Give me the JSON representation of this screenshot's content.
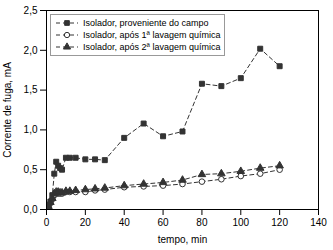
{
  "chart_data": {
    "type": "line",
    "xlabel": "tempo, min",
    "ylabel": "Corrente de fuga, mA",
    "xlim": [
      0,
      140
    ],
    "ylim": [
      0.0,
      2.5
    ],
    "xticks": [
      0,
      20,
      40,
      60,
      80,
      100,
      120,
      140
    ],
    "yticks": [
      {
        "value": 0.0,
        "label": "0,0"
      },
      {
        "value": 0.5,
        "label": "0,5"
      },
      {
        "value": 1.0,
        "label": "1,0"
      },
      {
        "value": 1.5,
        "label": "1,5"
      },
      {
        "value": 2.0,
        "label": "2,0"
      },
      {
        "value": 2.5,
        "label": "2,5"
      }
    ],
    "grid": false,
    "legend": "upper left",
    "series": [
      {
        "name": "Isolador, proveniente do campo",
        "color": "#333333",
        "marker": "square",
        "line_style": "dashed",
        "x": [
          1,
          2,
          3,
          4,
          5,
          6,
          7,
          8,
          10,
          12,
          15,
          20,
          25,
          30,
          40,
          50,
          60,
          70,
          80,
          90,
          100,
          110,
          120
        ],
        "values": [
          0.05,
          0.1,
          0.18,
          0.45,
          0.6,
          0.55,
          0.52,
          0.5,
          0.65,
          0.65,
          0.65,
          0.63,
          0.63,
          0.62,
          0.9,
          1.08,
          0.92,
          0.98,
          1.58,
          1.55,
          1.65,
          2.02,
          1.8
        ]
      },
      {
        "name": "Isolador, após 1ª lavagem química",
        "color": "#333333",
        "marker": "circle-open",
        "line_style": "dashed",
        "x": [
          1,
          2,
          3,
          4,
          5,
          6,
          7,
          8,
          10,
          12,
          15,
          20,
          25,
          30,
          40,
          50,
          60,
          70,
          80,
          90,
          100,
          110,
          120
        ],
        "values": [
          0.04,
          0.08,
          0.13,
          0.18,
          0.2,
          0.2,
          0.2,
          0.2,
          0.22,
          0.22,
          0.22,
          0.22,
          0.24,
          0.25,
          0.28,
          0.29,
          0.3,
          0.32,
          0.35,
          0.38,
          0.42,
          0.45,
          0.5
        ]
      },
      {
        "name": "Isolador, após 2ª lavagem química",
        "color": "#333333",
        "marker": "triangle",
        "line_style": "dashed",
        "x": [
          1,
          2,
          3,
          4,
          5,
          6,
          7,
          8,
          10,
          12,
          15,
          20,
          25,
          30,
          40,
          50,
          60,
          70,
          80,
          90,
          100,
          110,
          120
        ],
        "values": [
          0.04,
          0.09,
          0.14,
          0.2,
          0.22,
          0.22,
          0.21,
          0.21,
          0.23,
          0.23,
          0.24,
          0.25,
          0.26,
          0.27,
          0.3,
          0.32,
          0.34,
          0.37,
          0.44,
          0.45,
          0.48,
          0.52,
          0.55
        ]
      }
    ]
  }
}
